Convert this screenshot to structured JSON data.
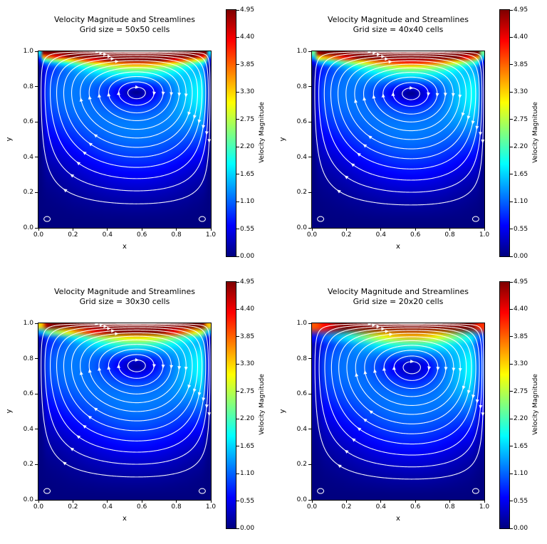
{
  "page": {
    "background": "#ffffff"
  },
  "axis": {
    "xlabel": "x",
    "ylabel": "y",
    "x_tick_labels": [
      "0.0",
      "0.2",
      "0.4",
      "0.6",
      "0.8",
      "1.0"
    ],
    "y_tick_labels": [
      "0.0",
      "0.2",
      "0.4",
      "0.6",
      "0.8",
      "1.0"
    ]
  },
  "colorbar": {
    "label": "Velocity Magnitude",
    "tick_labels": [
      "0.00",
      "0.55",
      "1.10",
      "1.65",
      "2.20",
      "2.75",
      "3.30",
      "3.85",
      "4.40",
      "4.95"
    ],
    "min": 0,
    "max": 4.95,
    "colormap": "jet"
  },
  "chart_data": [
    {
      "type": "heatmap",
      "overlay": "streamlines",
      "title": "Velocity Magnitude and Streamlines",
      "subtitle": "Grid size = 50x50 cells",
      "grid_size": 50,
      "xlabel": "x",
      "ylabel": "y",
      "xlim": [
        0,
        1
      ],
      "ylim": [
        0,
        1
      ],
      "xticks": [
        0,
        0.2,
        0.4,
        0.6,
        0.8,
        1.0
      ],
      "yticks": [
        0,
        0.2,
        0.4,
        0.6,
        0.8,
        1.0
      ],
      "colormap": "jet",
      "value_range": [
        0,
        4.95
      ],
      "colorbar_label": "Velocity Magnitude",
      "colorbar_ticks": [
        0,
        0.55,
        1.1,
        1.65,
        2.2,
        2.75,
        3.3,
        3.85,
        4.4,
        4.95
      ],
      "flow": {
        "lid_speed": 4.95,
        "primary_vortex_center": [
          0.57,
          0.765
        ],
        "direction": "clockwise",
        "corner_eddies": [
          [
            0.05,
            0.05
          ],
          [
            0.95,
            0.05
          ]
        ]
      }
    },
    {
      "type": "heatmap",
      "overlay": "streamlines",
      "title": "Velocity Magnitude and Streamlines",
      "subtitle": "Grid size = 40x40 cells",
      "grid_size": 40,
      "xlabel": "x",
      "ylabel": "y",
      "xlim": [
        0,
        1
      ],
      "ylim": [
        0,
        1
      ],
      "xticks": [
        0,
        0.2,
        0.4,
        0.6,
        0.8,
        1.0
      ],
      "yticks": [
        0,
        0.2,
        0.4,
        0.6,
        0.8,
        1.0
      ],
      "colormap": "jet",
      "value_range": [
        0,
        4.95
      ],
      "colorbar_label": "Velocity Magnitude",
      "colorbar_ticks": [
        0,
        0.55,
        1.1,
        1.65,
        2.2,
        2.75,
        3.3,
        3.85,
        4.4,
        4.95
      ],
      "flow": {
        "lid_speed": 4.95,
        "primary_vortex_center": [
          0.575,
          0.76
        ],
        "direction": "clockwise",
        "corner_eddies": [
          [
            0.05,
            0.05
          ],
          [
            0.95,
            0.05
          ]
        ]
      }
    },
    {
      "type": "heatmap",
      "overlay": "streamlines",
      "title": "Velocity Magnitude and Streamlines",
      "subtitle": "Grid size = 30x30 cells",
      "grid_size": 30,
      "xlabel": "x",
      "ylabel": "y",
      "xlim": [
        0,
        1
      ],
      "ylim": [
        0,
        1
      ],
      "xticks": [
        0,
        0.2,
        0.4,
        0.6,
        0.8,
        1.0
      ],
      "yticks": [
        0,
        0.2,
        0.4,
        0.6,
        0.8,
        1.0
      ],
      "colormap": "jet",
      "value_range": [
        0,
        4.95
      ],
      "colorbar_label": "Velocity Magnitude",
      "colorbar_ticks": [
        0,
        0.55,
        1.1,
        1.65,
        2.2,
        2.75,
        3.3,
        3.85,
        4.4,
        4.95
      ],
      "flow": {
        "lid_speed": 4.95,
        "primary_vortex_center": [
          0.57,
          0.76
        ],
        "direction": "clockwise",
        "corner_eddies": [
          [
            0.05,
            0.05
          ],
          [
            0.95,
            0.05
          ]
        ]
      }
    },
    {
      "type": "heatmap",
      "overlay": "streamlines",
      "title": "Velocity Magnitude and Streamlines",
      "subtitle": "Grid size = 20x20 cells",
      "grid_size": 20,
      "xlabel": "x",
      "ylabel": "y",
      "xlim": [
        0,
        1
      ],
      "ylim": [
        0,
        1
      ],
      "xticks": [
        0,
        0.2,
        0.4,
        0.6,
        0.8,
        1.0
      ],
      "yticks": [
        0,
        0.2,
        0.4,
        0.6,
        0.8,
        1.0
      ],
      "colormap": "jet",
      "value_range": [
        0,
        4.95
      ],
      "colorbar_label": "Velocity Magnitude",
      "colorbar_ticks": [
        0,
        0.55,
        1.1,
        1.65,
        2.2,
        2.75,
        3.3,
        3.85,
        4.4,
        4.95
      ],
      "flow": {
        "lid_speed": 4.95,
        "primary_vortex_center": [
          0.58,
          0.75
        ],
        "direction": "clockwise",
        "corner_eddies": [
          [
            0.05,
            0.05
          ],
          [
            0.95,
            0.05
          ]
        ]
      }
    }
  ],
  "render": {
    "swirl_scale": 0.5,
    "lid_decay": 0.05,
    "edge_taper": 0.025,
    "wall_damp": 0.05,
    "stream_levels": [
      0.985,
      0.94,
      0.86,
      0.76,
      0.64,
      0.52,
      0.4,
      0.29,
      0.195,
      0.115,
      0.055,
      0.018
    ]
  }
}
